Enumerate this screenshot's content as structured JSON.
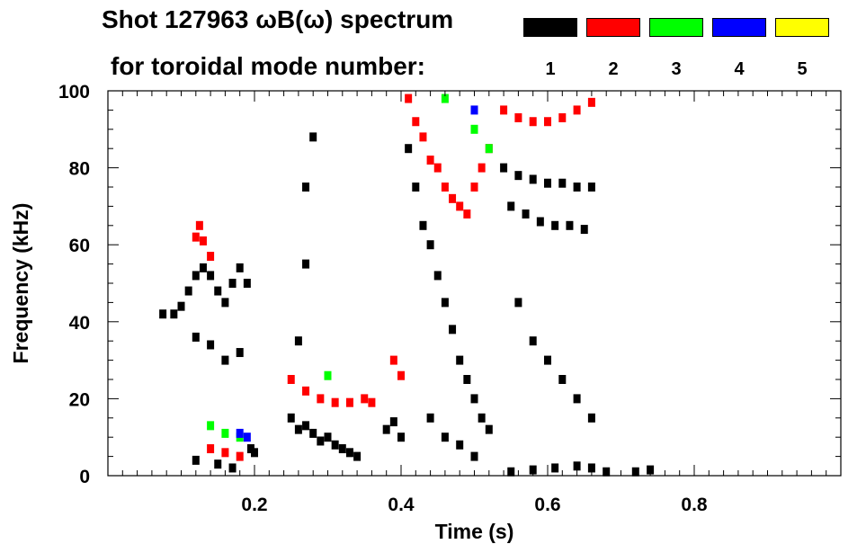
{
  "header": {
    "title_line1": "Shot 127963 ωB(ω) spectrum",
    "title_line2": "for toroidal mode number:"
  },
  "legend": [
    {
      "label": "1",
      "color": "#000000"
    },
    {
      "label": "2",
      "color": "#ff0000"
    },
    {
      "label": "3",
      "color": "#00ff00"
    },
    {
      "label": "4",
      "color": "#0000ff"
    },
    {
      "label": "5",
      "color": "#ffff00"
    }
  ],
  "chart_data": {
    "type": "heatmap",
    "title": "Shot 127963 ωB(ω) spectrum",
    "xlabel": "Time (s)",
    "ylabel": "Frequency (kHz)",
    "xlim": [
      0.0,
      1.0
    ],
    "ylim": [
      0,
      100
    ],
    "x_ticks": [
      0.2,
      0.4,
      0.6,
      0.8
    ],
    "x_tick_labels": [
      "0.2",
      "0.4",
      "0.6",
      "0.8"
    ],
    "y_ticks": [
      0,
      20,
      40,
      60,
      80,
      100
    ],
    "y_tick_labels": [
      "0",
      "20",
      "40",
      "60",
      "80",
      "100"
    ],
    "grid": false,
    "series": [
      {
        "name": "1",
        "color": "#000000",
        "points": [
          [
            0.075,
            42
          ],
          [
            0.09,
            42
          ],
          [
            0.1,
            44
          ],
          [
            0.11,
            48
          ],
          [
            0.12,
            52
          ],
          [
            0.13,
            54
          ],
          [
            0.14,
            52
          ],
          [
            0.15,
            48
          ],
          [
            0.16,
            45
          ],
          [
            0.17,
            50
          ],
          [
            0.18,
            54
          ],
          [
            0.19,
            50
          ],
          [
            0.12,
            36
          ],
          [
            0.14,
            34
          ],
          [
            0.16,
            30
          ],
          [
            0.18,
            32
          ],
          [
            0.12,
            4
          ],
          [
            0.15,
            3
          ],
          [
            0.17,
            2
          ],
          [
            0.195,
            7
          ],
          [
            0.2,
            6
          ],
          [
            0.25,
            15
          ],
          [
            0.26,
            12
          ],
          [
            0.27,
            13
          ],
          [
            0.28,
            11
          ],
          [
            0.29,
            9
          ],
          [
            0.3,
            10
          ],
          [
            0.31,
            8
          ],
          [
            0.32,
            7
          ],
          [
            0.33,
            6
          ],
          [
            0.34,
            5
          ],
          [
            0.26,
            35
          ],
          [
            0.27,
            55
          ],
          [
            0.27,
            75
          ],
          [
            0.28,
            88
          ],
          [
            0.38,
            12
          ],
          [
            0.39,
            14
          ],
          [
            0.4,
            10
          ],
          [
            0.41,
            85
          ],
          [
            0.42,
            75
          ],
          [
            0.43,
            65
          ],
          [
            0.44,
            60
          ],
          [
            0.45,
            52
          ],
          [
            0.46,
            45
          ],
          [
            0.47,
            38
          ],
          [
            0.48,
            30
          ],
          [
            0.49,
            25
          ],
          [
            0.5,
            20
          ],
          [
            0.51,
            15
          ],
          [
            0.52,
            12
          ],
          [
            0.44,
            15
          ],
          [
            0.46,
            10
          ],
          [
            0.48,
            8
          ],
          [
            0.5,
            5
          ],
          [
            0.54,
            80
          ],
          [
            0.56,
            78
          ],
          [
            0.58,
            77
          ],
          [
            0.6,
            76
          ],
          [
            0.62,
            76
          ],
          [
            0.64,
            75
          ],
          [
            0.66,
            75
          ],
          [
            0.55,
            70
          ],
          [
            0.57,
            68
          ],
          [
            0.59,
            66
          ],
          [
            0.61,
            65
          ],
          [
            0.63,
            65
          ],
          [
            0.65,
            64
          ],
          [
            0.56,
            45
          ],
          [
            0.58,
            35
          ],
          [
            0.6,
            30
          ],
          [
            0.62,
            25
          ],
          [
            0.64,
            20
          ],
          [
            0.66,
            15
          ],
          [
            0.55,
            1
          ],
          [
            0.58,
            1.5
          ],
          [
            0.61,
            2
          ],
          [
            0.64,
            2.5
          ],
          [
            0.66,
            2
          ],
          [
            0.68,
            1
          ],
          [
            0.72,
            1
          ],
          [
            0.74,
            1.5
          ]
        ]
      },
      {
        "name": "2",
        "color": "#ff0000",
        "points": [
          [
            0.12,
            62
          ],
          [
            0.125,
            65
          ],
          [
            0.13,
            61
          ],
          [
            0.14,
            57
          ],
          [
            0.14,
            7
          ],
          [
            0.16,
            6
          ],
          [
            0.18,
            5
          ],
          [
            0.25,
            25
          ],
          [
            0.27,
            22
          ],
          [
            0.29,
            20
          ],
          [
            0.31,
            19
          ],
          [
            0.33,
            19
          ],
          [
            0.35,
            20
          ],
          [
            0.36,
            19
          ],
          [
            0.39,
            30
          ],
          [
            0.4,
            26
          ],
          [
            0.41,
            98
          ],
          [
            0.42,
            92
          ],
          [
            0.43,
            88
          ],
          [
            0.44,
            82
          ],
          [
            0.45,
            80
          ],
          [
            0.46,
            75
          ],
          [
            0.47,
            72
          ],
          [
            0.48,
            70
          ],
          [
            0.49,
            68
          ],
          [
            0.5,
            75
          ],
          [
            0.51,
            80
          ],
          [
            0.52,
            85
          ],
          [
            0.54,
            95
          ],
          [
            0.56,
            93
          ],
          [
            0.58,
            92
          ],
          [
            0.6,
            92
          ],
          [
            0.62,
            93
          ],
          [
            0.64,
            95
          ],
          [
            0.66,
            97
          ]
        ]
      },
      {
        "name": "3",
        "color": "#00ff00",
        "points": [
          [
            0.14,
            13
          ],
          [
            0.16,
            11
          ],
          [
            0.18,
            10
          ],
          [
            0.3,
            26
          ],
          [
            0.46,
            98
          ],
          [
            0.5,
            90
          ],
          [
            0.52,
            85
          ]
        ]
      },
      {
        "name": "4",
        "color": "#0000ff",
        "points": [
          [
            0.18,
            11
          ],
          [
            0.19,
            10
          ],
          [
            0.5,
            95
          ]
        ]
      },
      {
        "name": "5",
        "color": "#ffff00",
        "points": []
      }
    ]
  }
}
